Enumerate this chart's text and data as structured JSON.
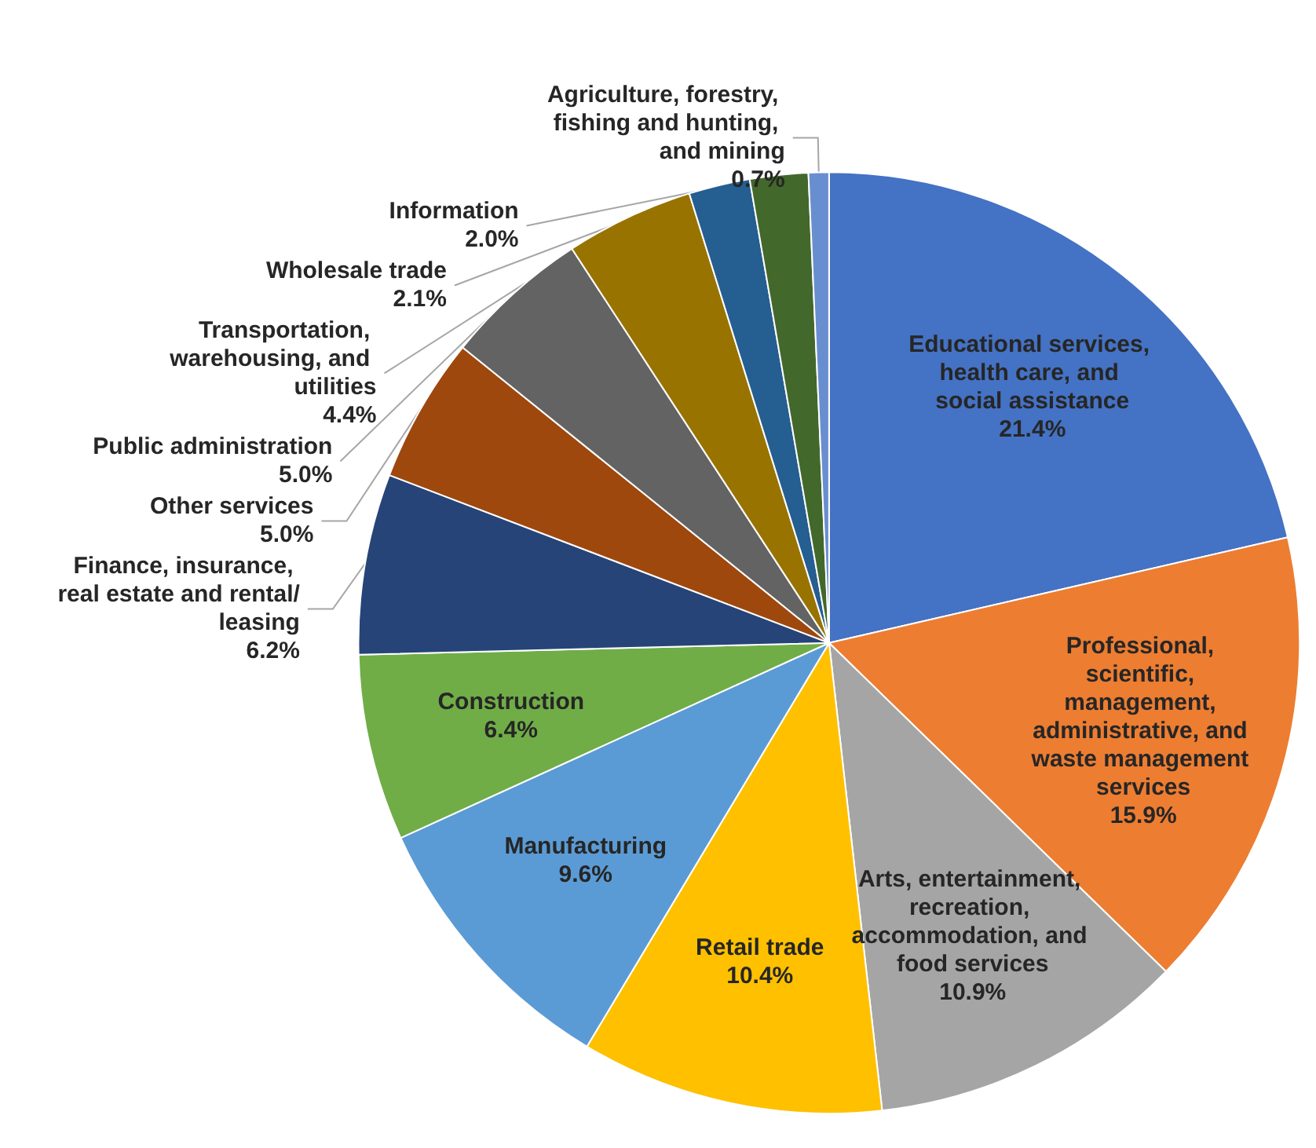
{
  "chart_data": {
    "type": "pie",
    "categories": [
      "Educational services, health care, and social assistance",
      "Professional, scientific, management, administrative, and waste management services",
      "Arts, entertainment, recreation, accommodation, and food services",
      "Retail trade",
      "Manufacturing",
      "Construction",
      "Finance, insurance, real estate and rental/leasing",
      "Other services",
      "Public administration",
      "Transportation, warehousing, and utilities",
      "Wholesale trade",
      "Information",
      "Agriculture, forestry, fishing and hunting, and mining"
    ],
    "values": [
      21.4,
      15.9,
      10.9,
      10.4,
      9.6,
      6.4,
      6.2,
      5.0,
      5.0,
      4.4,
      2.1,
      2.0,
      0.7
    ],
    "colors": [
      "#4472c4",
      "#ed7d31",
      "#a5a5a5",
      "#ffc000",
      "#5b9bd5",
      "#70ad47",
      "#264478",
      "#9e480e",
      "#636363",
      "#997300",
      "#255e91",
      "#43682b",
      "#698ed0"
    ],
    "value_labels": [
      "21.4%",
      "15.9%",
      "10.9%",
      "10.4%",
      "9.6%",
      "6.4%",
      "6.2%",
      "5.0%",
      "5.0%",
      "4.4%",
      "2.1%",
      "2.0%",
      "0.7%"
    ],
    "legend": false
  }
}
